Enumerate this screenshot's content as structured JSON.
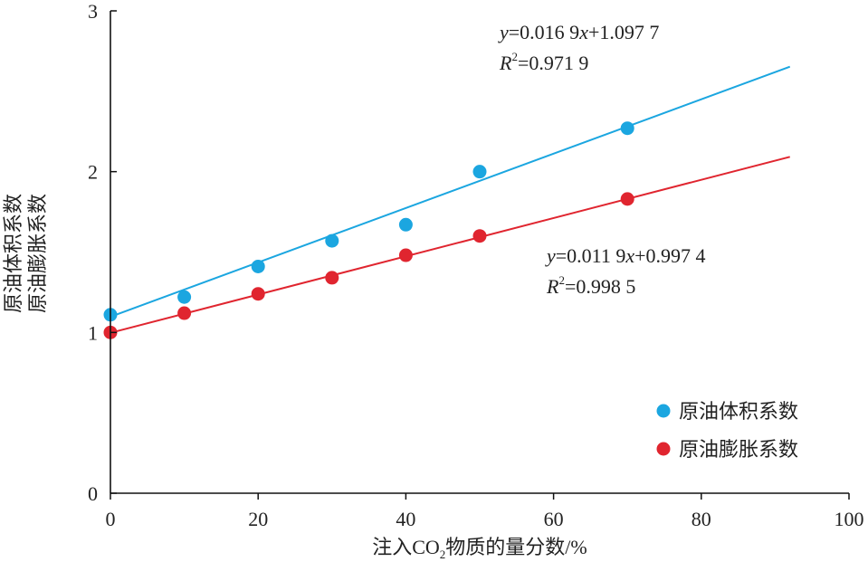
{
  "chart_data": {
    "type": "scatter",
    "xlabel": {
      "prefix": "注入CO",
      "sub": "2",
      "suffix": "物质的量分数/%"
    },
    "ylabel": [
      "原油体积系数",
      "原油膨胀系数"
    ],
    "xlim": [
      0,
      100
    ],
    "ylim": [
      0,
      3
    ],
    "xticks": [
      0,
      20,
      40,
      60,
      80,
      100
    ],
    "yticks": [
      0,
      1,
      2,
      3
    ],
    "xtick_labels": [
      "0",
      "20",
      "40",
      "60",
      "80",
      "100"
    ],
    "ytick_labels": [
      "0",
      "1",
      "2",
      "3"
    ],
    "legend_position": "bottom-right",
    "series": [
      {
        "name": "原油体积系数",
        "color": "#1ba6e0",
        "x": [
          0,
          10,
          20,
          30,
          40,
          50,
          70
        ],
        "y": [
          1.11,
          1.22,
          1.41,
          1.57,
          1.67,
          2.0,
          2.27
        ],
        "fit": {
          "slope": 0.0169,
          "intercept": 1.0977,
          "x_range": [
            0,
            92
          ]
        },
        "equation": {
          "y_var": "y",
          "eq_text": "=0.016 9",
          "x_var": "x",
          "tail": "+1.097 7",
          "r_var": "R",
          "r_sup": "2",
          "r_text": "=0.971 9"
        }
      },
      {
        "name": "原油膨胀系数",
        "color": "#e0252f",
        "x": [
          0,
          10,
          20,
          30,
          40,
          50,
          70
        ],
        "y": [
          1.0,
          1.12,
          1.24,
          1.34,
          1.48,
          1.6,
          1.83
        ],
        "fit": {
          "slope": 0.0119,
          "intercept": 0.9974,
          "x_range": [
            0,
            92
          ]
        },
        "equation": {
          "y_var": "y",
          "eq_text": "=0.011 9",
          "x_var": "x",
          "tail": "+0.997 4",
          "r_var": "R",
          "r_sup": "2",
          "r_text": "=0.998 5"
        }
      }
    ]
  }
}
